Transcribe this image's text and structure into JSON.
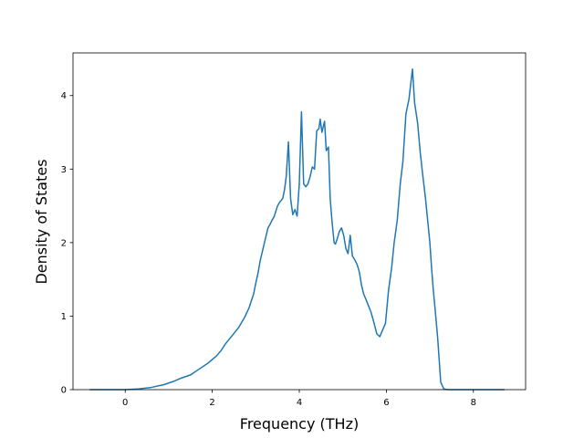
{
  "chart_data": {
    "type": "line",
    "title": "",
    "xlabel": "Frequency (THz)",
    "ylabel": "Density of States",
    "xlim": [
      -1.2,
      9.2
    ],
    "ylim": [
      0,
      4.58
    ],
    "xticks": [
      0,
      2,
      4,
      6,
      8
    ],
    "yticks": [
      0,
      1,
      2,
      3,
      4
    ],
    "grid": false,
    "series": [
      {
        "color": "#1f77b4",
        "x": [
          -0.8,
          -0.4,
          0,
          0.3,
          0.6,
          0.9,
          1.1,
          1.3,
          1.5,
          1.7,
          1.9,
          2.1,
          2.2,
          2.3,
          2.45,
          2.6,
          2.75,
          2.85,
          2.95,
          3.0,
          3.05,
          3.1,
          3.2,
          3.28,
          3.33,
          3.37,
          3.42,
          3.5,
          3.55,
          3.62,
          3.66,
          3.7,
          3.75,
          3.8,
          3.85,
          3.9,
          3.95,
          4.0,
          4.05,
          4.1,
          4.15,
          4.2,
          4.25,
          4.3,
          4.35,
          4.4,
          4.45,
          4.48,
          4.52,
          4.58,
          4.62,
          4.67,
          4.71,
          4.75,
          4.8,
          4.83,
          4.87,
          4.92,
          4.97,
          5.02,
          5.07,
          5.12,
          5.17,
          5.22,
          5.28,
          5.33,
          5.38,
          5.43,
          5.48,
          5.55,
          5.65,
          5.72,
          5.78,
          5.85,
          5.92,
          5.98,
          6.05,
          6.12,
          6.18,
          6.25,
          6.32,
          6.38,
          6.45,
          6.52,
          6.6,
          6.65,
          6.72,
          6.78,
          6.84,
          6.9,
          6.95,
          7.0,
          7.04,
          7.08,
          7.12,
          7.18,
          7.25,
          7.32,
          7.4,
          7.48,
          7.55,
          7.62,
          7.7,
          7.75,
          7.8,
          7.88,
          7.96,
          8.1,
          8.3,
          8.7
        ],
        "y": [
          0,
          0,
          0,
          0.01,
          0.03,
          0.07,
          0.11,
          0.16,
          0.2,
          0.28,
          0.36,
          0.46,
          0.53,
          0.62,
          0.73,
          0.84,
          0.99,
          1.12,
          1.3,
          1.45,
          1.58,
          1.75,
          2.0,
          2.2,
          2.25,
          2.3,
          2.35,
          2.5,
          2.55,
          2.6,
          2.72,
          2.9,
          3.37,
          2.6,
          2.38,
          2.45,
          2.36,
          2.8,
          3.78,
          2.8,
          2.76,
          2.8,
          2.9,
          3.03,
          3.0,
          3.52,
          3.55,
          3.68,
          3.5,
          3.65,
          3.25,
          3.3,
          2.6,
          2.3,
          2.0,
          1.98,
          2.05,
          2.15,
          2.2,
          2.1,
          1.92,
          1.85,
          2.1,
          1.82,
          1.76,
          1.7,
          1.6,
          1.42,
          1.3,
          1.2,
          1.05,
          0.9,
          0.76,
          0.72,
          0.82,
          0.9,
          1.35,
          1.65,
          2.0,
          2.3,
          2.8,
          3.1,
          3.75,
          3.95,
          4.36,
          3.9,
          3.62,
          3.22,
          2.9,
          2.6,
          2.3,
          2.0,
          1.65,
          1.35,
          1.1,
          0.7,
          0.1,
          0.01,
          0,
          0,
          0,
          0,
          0,
          0,
          0,
          0,
          0,
          0,
          0,
          0
        ]
      }
    ]
  }
}
